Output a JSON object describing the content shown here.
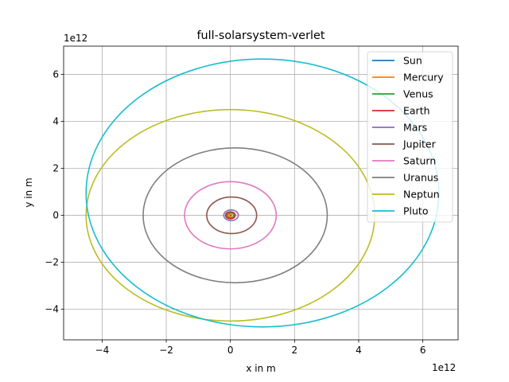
{
  "chart_data": {
    "type": "line",
    "title": "full-solarsystem-verlet",
    "xlabel": "x in m",
    "ylabel": "y in m",
    "x_offset_label": "1e12",
    "y_offset_label": "1e12",
    "xlim": [
      -5.2,
      7.1
    ],
    "ylim": [
      -5.3,
      7.2
    ],
    "xticks": [
      -4,
      -2,
      0,
      2,
      4,
      6
    ],
    "yticks": [
      -4,
      -2,
      0,
      2,
      4,
      6
    ],
    "xtick_labels": [
      "−4",
      "−2",
      "0",
      "2",
      "4",
      "6"
    ],
    "ytick_labels": [
      "−4",
      "−2",
      "0",
      "2",
      "4",
      "6"
    ],
    "grid": true,
    "legend_position": "top-right",
    "series": [
      {
        "name": "Sun",
        "color": "#1f77b4",
        "a": 0.0,
        "b": 0.0,
        "cx": 0.0,
        "cy": 0.0
      },
      {
        "name": "Mercury",
        "color": "#ff7f0e",
        "a": 0.058,
        "b": 0.057,
        "cx": -0.012,
        "cy": 0.0
      },
      {
        "name": "Venus",
        "color": "#2ca02c",
        "a": 0.108,
        "b": 0.108,
        "cx": 0.0,
        "cy": 0.0
      },
      {
        "name": "Earth",
        "color": "#d62728",
        "a": 0.15,
        "b": 0.15,
        "cx": 0.0,
        "cy": 0.0
      },
      {
        "name": "Mars",
        "color": "#9467bd",
        "a": 0.228,
        "b": 0.227,
        "cx": 0.02,
        "cy": 0.0
      },
      {
        "name": "Jupiter",
        "color": "#8c564b",
        "a": 0.778,
        "b": 0.777,
        "cx": 0.04,
        "cy": 0.0
      },
      {
        "name": "Saturn",
        "color": "#e377c2",
        "a": 1.43,
        "b": 1.43,
        "cx": 0.0,
        "cy": 0.0
      },
      {
        "name": "Uranus",
        "color": "#7f7f7f",
        "a": 2.87,
        "b": 2.87,
        "cx": 0.15,
        "cy": 0.0
      },
      {
        "name": "Neptun",
        "color": "#bcbd22",
        "a": 4.5,
        "b": 4.5,
        "cx": 0.0,
        "cy": 0.0
      },
      {
        "name": "Pluto",
        "color": "#17becf",
        "a": 5.5,
        "b": 5.7,
        "cx": 1.0,
        "cy": 0.95
      }
    ]
  }
}
